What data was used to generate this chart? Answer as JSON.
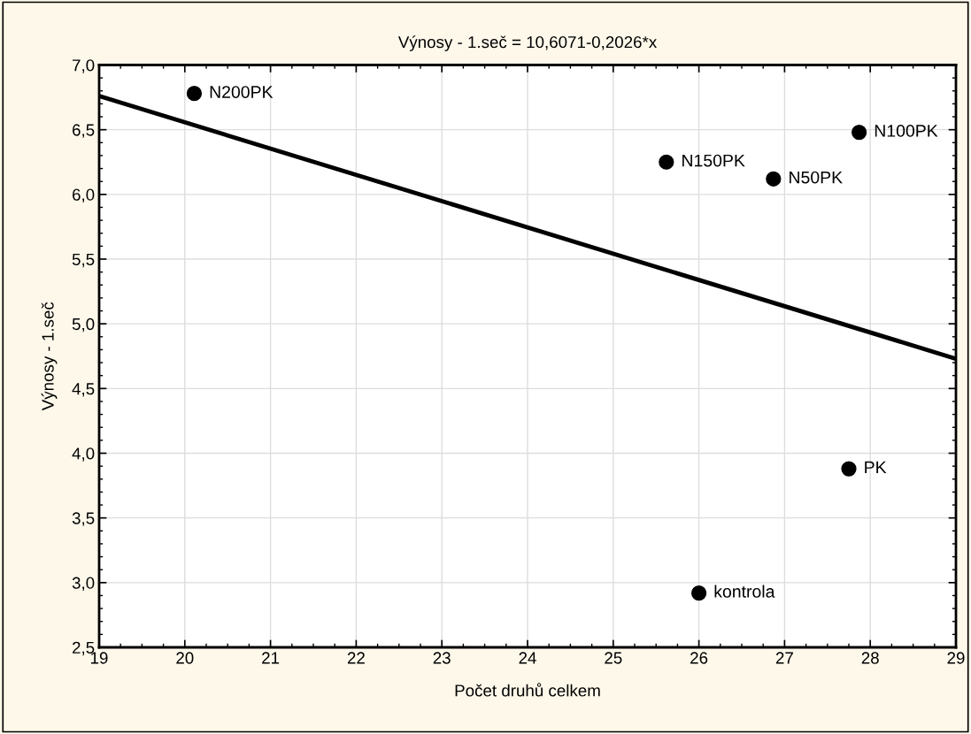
{
  "chart_data": {
    "type": "scatter",
    "title": "Výnosy - 1.seč = 10,6071-0,2026*x",
    "xlabel": "Počet druhů celkem",
    "ylabel": "Výnosy - 1.seč",
    "x": [
      20.11,
      25.62,
      26.87,
      27.87,
      27.75,
      26.0
    ],
    "series": [
      {
        "color": "#000000",
        "marker": "circle",
        "values": [
          6.78,
          6.25,
          6.12,
          6.48,
          3.88,
          2.92
        ]
      },
      {
        "type": "line",
        "color": "#000000",
        "line_style": "solid",
        "marker": "none",
        "x": [
          19,
          29
        ],
        "values": [
          6.76,
          4.73
        ]
      }
    ],
    "annotations": [
      {
        "text": "N200PK",
        "x": 20.11,
        "y": 6.78
      },
      {
        "text": "N150PK",
        "x": 25.62,
        "y": 6.25
      },
      {
        "text": "N50PK",
        "x": 26.87,
        "y": 6.12
      },
      {
        "text": "N100PK",
        "x": 27.87,
        "y": 6.48
      },
      {
        "text": "PK",
        "x": 27.75,
        "y": 3.88
      },
      {
        "text": "kontrola",
        "x": 26.0,
        "y": 2.92
      }
    ],
    "xlim": [
      19,
      29
    ],
    "ylim": [
      2.5,
      7.0
    ],
    "xticks": [
      19,
      20,
      21,
      22,
      23,
      24,
      25,
      26,
      27,
      28,
      29
    ],
    "yticks": [
      {
        "value": 2.5,
        "label": "2,5"
      },
      {
        "value": 3.0,
        "label": "3,0"
      },
      {
        "value": 3.5,
        "label": "3,5"
      },
      {
        "value": 4.0,
        "label": "4,0"
      },
      {
        "value": 4.5,
        "label": "4,5"
      },
      {
        "value": 5.0,
        "label": "5,0"
      },
      {
        "value": 5.5,
        "label": "5,5"
      },
      {
        "value": 6.0,
        "label": "6,0"
      },
      {
        "value": 6.5,
        "label": "6,5"
      },
      {
        "value": 7.0,
        "label": "7,0"
      }
    ],
    "grid": true
  }
}
